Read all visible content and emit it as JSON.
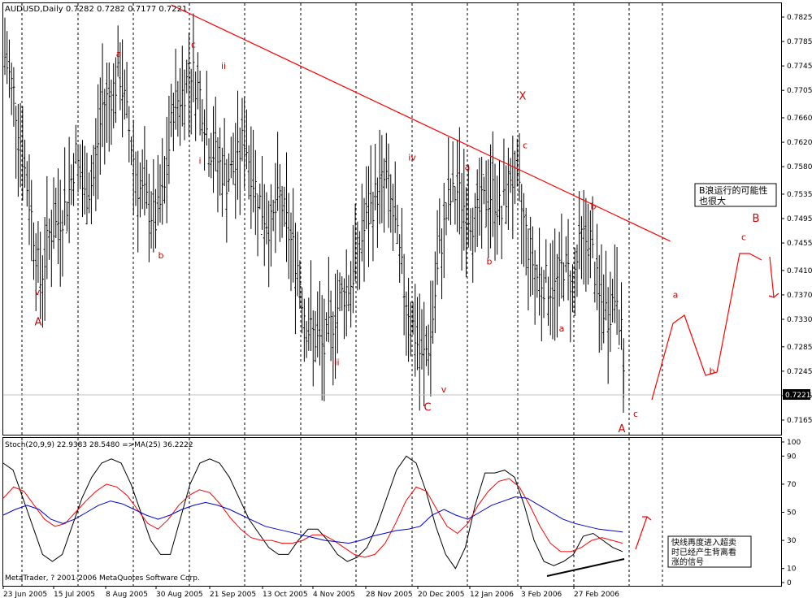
{
  "window": {
    "symbol_header": "AUDUSD,Daily  0.7282 0.7282 0.7177 0.7221",
    "copyright": "MetaTrader, ? 2001-2006 MetaQuotes Software Corp.",
    "current_price": "0.7221"
  },
  "colors": {
    "price_bars": "#000000",
    "trendline": "#ff0000",
    "wave_labels": "#cc0000",
    "stoch_main": "#000000",
    "stoch_signal": "#ff0000",
    "stoch_ma": "#0000cc",
    "grid": "#000000"
  },
  "chart_data": [
    {
      "type": "candlestick",
      "subtype": "ohlc-bars",
      "title": "AUDUSD,Daily",
      "ylim": [
        0.7145,
        0.7845
      ],
      "y_ticks": [
        "0.7825",
        "0.7785",
        "0.7745",
        "0.7705",
        "0.7660",
        "0.7620",
        "0.7580",
        "0.7535",
        "0.7495",
        "0.7455",
        "0.7410",
        "0.7370",
        "0.7330",
        "0.7285",
        "0.7245",
        "0.7205",
        "0.7165"
      ],
      "x_ticks": [
        "23 Jun 2005",
        "15 Jul 2005",
        "8 Aug 2005",
        "30 Aug 2005",
        "21 Sep 2005",
        "13 Oct 2005",
        "4 Nov 2005",
        "28 Nov 2005",
        "20 Dec 2005",
        "12 Jan 2006",
        "3 Feb 2006",
        "27 Feb 2006"
      ],
      "last_price": 0.7221,
      "approx_closes": [
        [
          0,
          0.776
        ],
        [
          4,
          0.77
        ],
        [
          8,
          0.76
        ],
        [
          12,
          0.75
        ],
        [
          16,
          0.739
        ],
        [
          20,
          0.747
        ],
        [
          24,
          0.749
        ],
        [
          28,
          0.752
        ],
        [
          32,
          0.76
        ],
        [
          36,
          0.753
        ],
        [
          40,
          0.756
        ],
        [
          44,
          0.768
        ],
        [
          48,
          0.77
        ],
        [
          52,
          0.773
        ],
        [
          56,
          0.764
        ],
        [
          60,
          0.755
        ],
        [
          64,
          0.752
        ],
        [
          68,
          0.749
        ],
        [
          72,
          0.754
        ],
        [
          76,
          0.768
        ],
        [
          80,
          0.77
        ],
        [
          84,
          0.774
        ],
        [
          88,
          0.77
        ],
        [
          92,
          0.762
        ],
        [
          96,
          0.759
        ],
        [
          100,
          0.756
        ],
        [
          104,
          0.758
        ],
        [
          108,
          0.763
        ],
        [
          112,
          0.756
        ],
        [
          116,
          0.751
        ],
        [
          120,
          0.748
        ],
        [
          124,
          0.753
        ],
        [
          128,
          0.747
        ],
        [
          132,
          0.742
        ],
        [
          136,
          0.732
        ],
        [
          140,
          0.73
        ],
        [
          144,
          0.728
        ],
        [
          148,
          0.733
        ],
        [
          152,
          0.737
        ],
        [
          156,
          0.739
        ],
        [
          160,
          0.745
        ],
        [
          164,
          0.75
        ],
        [
          168,
          0.754
        ],
        [
          172,
          0.756
        ],
        [
          176,
          0.748
        ],
        [
          180,
          0.738
        ],
        [
          184,
          0.732
        ],
        [
          188,
          0.726
        ],
        [
          192,
          0.73
        ],
        [
          196,
          0.744
        ],
        [
          200,
          0.752
        ],
        [
          204,
          0.754
        ],
        [
          208,
          0.751
        ],
        [
          212,
          0.749
        ],
        [
          216,
          0.752
        ],
        [
          220,
          0.754
        ],
        [
          224,
          0.75
        ],
        [
          228,
          0.757
        ],
        [
          232,
          0.753
        ],
        [
          236,
          0.745
        ],
        [
          240,
          0.74
        ],
        [
          244,
          0.739
        ],
        [
          248,
          0.738
        ],
        [
          252,
          0.742
        ],
        [
          256,
          0.739
        ],
        [
          260,
          0.746
        ],
        [
          264,
          0.746
        ],
        [
          268,
          0.736
        ],
        [
          272,
          0.734
        ],
        [
          276,
          0.738
        ],
        [
          280,
          0.7221
        ]
      ],
      "trendline": {
        "from": [
          75,
          0.7845
        ],
        "to": [
          300,
          0.7458
        ]
      },
      "wave_labels": [
        {
          "text": "v",
          "level": 0.737
        },
        {
          "text": "A",
          "level": 0.732
        },
        {
          "text": "a",
          "level": 0.776
        },
        {
          "text": "c",
          "level": 0.7775
        },
        {
          "text": "ii",
          "level": 0.774
        },
        {
          "text": "i",
          "level": 0.7585
        },
        {
          "text": "b",
          "level": 0.743
        },
        {
          "text": "iii",
          "level": 0.7255
        },
        {
          "text": "iv",
          "level": 0.759
        },
        {
          "text": "C",
          "level": 0.718
        },
        {
          "text": "v",
          "level": 0.721
        },
        {
          "text": "a",
          "level": 0.7575
        },
        {
          "text": "b",
          "level": 0.742
        },
        {
          "text": "X",
          "level": 0.769
        },
        {
          "text": "c",
          "level": 0.761
        },
        {
          "text": "b",
          "level": 0.751
        },
        {
          "text": "a",
          "level": 0.731
        },
        {
          "text": "c",
          "level": 0.717
        },
        {
          "text": "A",
          "level": 0.7145
        },
        {
          "text": "a",
          "level": 0.7365
        },
        {
          "text": "b",
          "level": 0.724
        },
        {
          "text": "c",
          "level": 0.746
        },
        {
          "text": "B",
          "level": 0.749
        }
      ],
      "note": "B浪运行的可能性\n也很大"
    },
    {
      "type": "line",
      "title": "Stoch(20,9,9) 22.9383 28.5480  =>MA(25) 36.2222",
      "ylim": [
        0,
        100
      ],
      "y_ticks": [
        "100",
        "90",
        "70",
        "50",
        "30",
        "10",
        "0"
      ],
      "series": [
        {
          "name": "main",
          "values": [
            85,
            80,
            60,
            40,
            20,
            15,
            20,
            40,
            60,
            75,
            85,
            88,
            85,
            70,
            50,
            30,
            20,
            20,
            45,
            70,
            85,
            88,
            85,
            75,
            60,
            45,
            35,
            25,
            20,
            20,
            30,
            38,
            38,
            30,
            20,
            15,
            18,
            25,
            40,
            60,
            80,
            90,
            85,
            65,
            40,
            20,
            10,
            25,
            55,
            78,
            78,
            80,
            75,
            55,
            30,
            15,
            12,
            15,
            20,
            33,
            35,
            30,
            25,
            22
          ]
        },
        {
          "name": "signal",
          "values": [
            60,
            68,
            65,
            55,
            45,
            40,
            42,
            50,
            58,
            65,
            70,
            68,
            62,
            52,
            42,
            38,
            45,
            55,
            62,
            66,
            64,
            56,
            46,
            38,
            32,
            30,
            30,
            28,
            28,
            30,
            34,
            34,
            30,
            25,
            20,
            18,
            20,
            28,
            42,
            58,
            68,
            65,
            52,
            40,
            35,
            42,
            55,
            65,
            72,
            74,
            68,
            55,
            40,
            28,
            22,
            22,
            25,
            30,
            32,
            30,
            28
          ]
        },
        {
          "name": "ma25",
          "values": [
            48,
            52,
            55,
            52,
            45,
            42,
            45,
            50,
            55,
            58,
            56,
            52,
            48,
            45,
            48,
            52,
            55,
            57,
            55,
            52,
            48,
            44,
            40,
            38,
            36,
            34,
            32,
            30,
            29,
            28,
            30,
            33,
            35,
            37,
            38,
            40,
            48,
            52,
            48,
            45,
            50,
            55,
            58,
            61,
            60,
            55,
            50,
            45,
            42,
            40,
            38,
            37,
            36
          ]
        }
      ],
      "note": "快线再度进入超卖\n时已经产生背离看\n涨的信号"
    }
  ]
}
